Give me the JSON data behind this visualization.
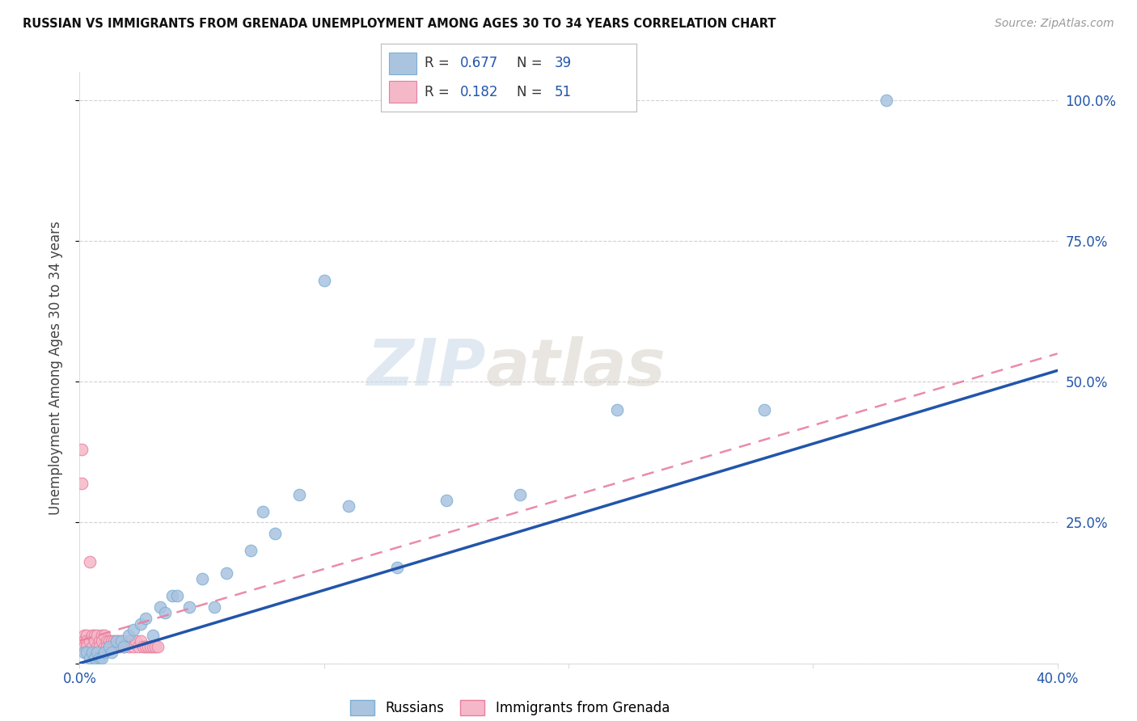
{
  "title": "RUSSIAN VS IMMIGRANTS FROM GRENADA UNEMPLOYMENT AMONG AGES 30 TO 34 YEARS CORRELATION CHART",
  "source": "Source: ZipAtlas.com",
  "ylabel": "Unemployment Among Ages 30 to 34 years",
  "xlim": [
    0.0,
    0.4
  ],
  "ylim": [
    0.0,
    1.05
  ],
  "grid_color": "#cccccc",
  "background_color": "#ffffff",
  "watermark_text": "ZIP",
  "watermark_text2": "atlas",
  "russian_R": "0.677",
  "russian_N": "39",
  "grenada_R": "0.182",
  "grenada_N": "51",
  "russian_color": "#aac4e0",
  "russian_edge": "#7bafd4",
  "grenada_color": "#f5b8c8",
  "grenada_edge": "#e87fa0",
  "russian_line_color": "#2255aa",
  "grenada_line_color": "#e87fa0",
  "russians_x": [
    0.002,
    0.003,
    0.004,
    0.005,
    0.006,
    0.007,
    0.008,
    0.009,
    0.01,
    0.012,
    0.013,
    0.015,
    0.017,
    0.018,
    0.02,
    0.022,
    0.025,
    0.027,
    0.03,
    0.033,
    0.035,
    0.038,
    0.04,
    0.045,
    0.05,
    0.055,
    0.06,
    0.07,
    0.075,
    0.08,
    0.09,
    0.1,
    0.11,
    0.13,
    0.15,
    0.18,
    0.22,
    0.28,
    0.33
  ],
  "russians_y": [
    0.02,
    0.02,
    0.01,
    0.02,
    0.01,
    0.02,
    0.01,
    0.01,
    0.02,
    0.03,
    0.02,
    0.04,
    0.04,
    0.03,
    0.05,
    0.06,
    0.07,
    0.08,
    0.05,
    0.1,
    0.09,
    0.12,
    0.12,
    0.1,
    0.15,
    0.1,
    0.16,
    0.2,
    0.27,
    0.23,
    0.3,
    0.68,
    0.28,
    0.17,
    0.29,
    0.3,
    0.45,
    0.45,
    1.0
  ],
  "grenada_x": [
    0.001,
    0.001,
    0.001,
    0.002,
    0.002,
    0.002,
    0.003,
    0.003,
    0.003,
    0.004,
    0.004,
    0.005,
    0.005,
    0.006,
    0.006,
    0.007,
    0.007,
    0.008,
    0.008,
    0.009,
    0.009,
    0.01,
    0.01,
    0.011,
    0.011,
    0.012,
    0.012,
    0.013,
    0.013,
    0.014,
    0.014,
    0.015,
    0.015,
    0.016,
    0.016,
    0.017,
    0.018,
    0.019,
    0.02,
    0.021,
    0.022,
    0.023,
    0.024,
    0.025,
    0.026,
    0.027,
    0.028,
    0.029,
    0.03,
    0.031,
    0.032
  ],
  "grenada_y": [
    0.38,
    0.32,
    0.04,
    0.05,
    0.04,
    0.03,
    0.05,
    0.04,
    0.03,
    0.18,
    0.04,
    0.05,
    0.03,
    0.05,
    0.04,
    0.05,
    0.03,
    0.04,
    0.03,
    0.05,
    0.04,
    0.05,
    0.03,
    0.04,
    0.03,
    0.04,
    0.03,
    0.04,
    0.03,
    0.04,
    0.03,
    0.04,
    0.03,
    0.04,
    0.03,
    0.04,
    0.03,
    0.04,
    0.03,
    0.04,
    0.03,
    0.04,
    0.03,
    0.04,
    0.03,
    0.03,
    0.03,
    0.03,
    0.03,
    0.03,
    0.03
  ],
  "russian_line_x": [
    0.0,
    0.4
  ],
  "russian_line_y": [
    0.0,
    0.52
  ],
  "grenada_line_x": [
    0.0,
    0.4
  ],
  "grenada_line_y": [
    0.04,
    0.55
  ]
}
